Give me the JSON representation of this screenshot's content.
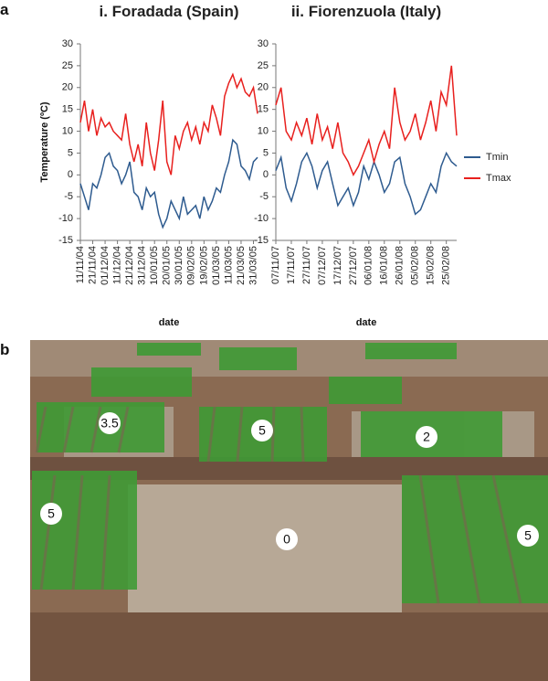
{
  "panels": {
    "a": "a",
    "b": "b"
  },
  "chart_data": [
    {
      "type": "line",
      "title": "i. Foradada (Spain)",
      "ylabel": "Temperature (ºC)",
      "xlabel": "date",
      "categories": [
        "11/11/04",
        null,
        null,
        "21/11/04",
        null,
        null,
        "01/12/04",
        null,
        null,
        "11/12/04",
        null,
        null,
        "21/12/04",
        null,
        null,
        "31/12/04",
        null,
        null,
        "10/01/05",
        null,
        null,
        "20/01/05",
        null,
        null,
        "30/01/05",
        null,
        null,
        "09/02/05",
        null,
        null,
        "19/02/05",
        null,
        null,
        "01/03/05",
        null,
        null,
        "11/03/05",
        null,
        null,
        "21/03/05",
        null,
        null,
        "31/03/05",
        null
      ],
      "series": [
        {
          "color": "#2e5b8f",
          "values": [
            -2,
            -5,
            -8,
            -2,
            -3,
            0,
            4,
            5,
            2,
            1,
            -2,
            0,
            3,
            -4,
            -5,
            -8,
            -3,
            -5,
            -4,
            -9,
            -12,
            -10,
            -6,
            -8,
            -10,
            -5,
            -9,
            -8,
            -7,
            -10,
            -5,
            -8,
            -6,
            -3,
            -4,
            0,
            3,
            8,
            7,
            2,
            1,
            -1,
            3,
            4
          ]
        },
        {
          "color": "#e8201e",
          "values": [
            12,
            17,
            10,
            15,
            9,
            13,
            11,
            12,
            10,
            9,
            8,
            14,
            7,
            3,
            7,
            2,
            12,
            5,
            1,
            8,
            17,
            3,
            0,
            9,
            6,
            10,
            12,
            8,
            11,
            7,
            12,
            10,
            16,
            13,
            9,
            18,
            21,
            23,
            20,
            22,
            19,
            18,
            20,
            14
          ]
        }
      ],
      "ylim": [
        -15,
        30
      ],
      "yticks": [
        -15,
        -10,
        -5,
        0,
        5,
        10,
        15,
        20,
        25,
        30
      ],
      "grid": false
    },
    {
      "type": "line",
      "title": "ii. Fiorenzuola (Italy)",
      "xlabel": "date",
      "categories": [
        "07/11/07",
        null,
        null,
        "17/11/07",
        null,
        null,
        "27/11/07",
        null,
        null,
        "07/12/07",
        null,
        null,
        "17/12/07",
        null,
        null,
        "27/12/07",
        null,
        null,
        "06/01/08",
        null,
        null,
        "16/01/08",
        null,
        null,
        "26/01/08",
        null,
        null,
        "05/02/08",
        null,
        null,
        "15/02/08",
        null,
        null,
        "25/02/08",
        null,
        null
      ],
      "series": [
        {
          "name": "Tmin",
          "color": "#2e5b8f",
          "values": [
            1,
            4,
            -3,
            -6,
            -2,
            3,
            5,
            2,
            -3,
            1,
            3,
            -2,
            -7,
            -5,
            -3,
            -7,
            -4,
            2,
            -1,
            3,
            0,
            -4,
            -2,
            3,
            4,
            -2,
            -5,
            -9,
            -8,
            -5,
            -2,
            -4,
            2,
            5,
            3,
            2
          ]
        },
        {
          "name": "Tmax",
          "color": "#e8201e",
          "values": [
            16,
            20,
            10,
            8,
            12,
            9,
            13,
            7,
            14,
            8,
            11,
            6,
            12,
            5,
            3,
            0,
            2,
            5,
            8,
            3,
            7,
            10,
            6,
            20,
            12,
            8,
            10,
            14,
            8,
            12,
            17,
            10,
            19,
            16,
            25,
            9
          ]
        }
      ],
      "ylim": [
        -15,
        30
      ],
      "yticks": [
        -15,
        -10,
        -5,
        0,
        5,
        10,
        15,
        20,
        25,
        30
      ],
      "grid": false,
      "legend": "right"
    }
  ],
  "photo_labels": [
    "3.5",
    "5",
    "2",
    "5",
    "0",
    "5"
  ]
}
